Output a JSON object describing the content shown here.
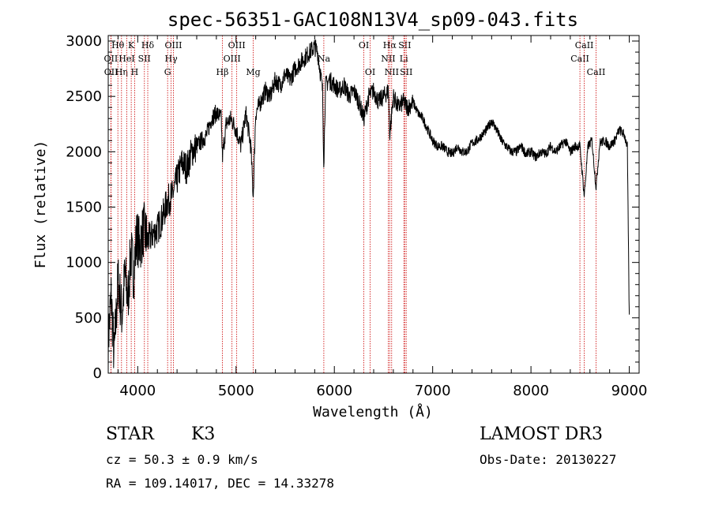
{
  "chart_data": {
    "type": "line",
    "title": "spec-56351-GAC108N13V4_sp09-043.fits",
    "xlabel": "Wavelength (Å)",
    "ylabel": "Flux (relative)",
    "xlim": [
      3700,
      9100
    ],
    "ylim": [
      0,
      3050
    ],
    "x_ticks": [
      4000,
      5000,
      6000,
      7000,
      8000,
      9000
    ],
    "y_ticks": [
      0,
      500,
      1000,
      1500,
      2000,
      2500,
      3000
    ],
    "grid": false,
    "series": [
      {
        "name": "flux",
        "x": [
          3700,
          3730,
          3760,
          3800,
          3840,
          3870,
          3900,
          3930,
          3960,
          3990,
          4020,
          4060,
          4100,
          4150,
          4200,
          4250,
          4300,
          4350,
          4400,
          4450,
          4500,
          4550,
          4600,
          4650,
          4700,
          4750,
          4800,
          4850,
          4861,
          4900,
          4950,
          5000,
          5050,
          5100,
          5150,
          5175,
          5200,
          5250,
          5300,
          5350,
          5400,
          5450,
          5500,
          5550,
          5600,
          5650,
          5700,
          5750,
          5800,
          5830,
          5860,
          5880,
          5893,
          5910,
          5950,
          6000,
          6050,
          6100,
          6150,
          6200,
          6250,
          6300,
          6350,
          6400,
          6450,
          6500,
          6550,
          6563,
          6600,
          6650,
          6700,
          6750,
          6800,
          6850,
          6900,
          6950,
          7000,
          7050,
          7100,
          7150,
          7200,
          7250,
          7300,
          7350,
          7400,
          7450,
          7500,
          7550,
          7600,
          7650,
          7700,
          7750,
          7800,
          7850,
          7900,
          7950,
          8000,
          8050,
          8100,
          8150,
          8200,
          8250,
          8300,
          8350,
          8400,
          8450,
          8498,
          8542,
          8580,
          8620,
          8662,
          8700,
          8750,
          8800,
          8850,
          8900,
          8950,
          8980,
          9000
        ],
        "y": [
          280,
          700,
          150,
          850,
          520,
          900,
          650,
          1100,
          900,
          1250,
          1150,
          1300,
          1200,
          1250,
          1300,
          1400,
          1550,
          1600,
          1750,
          1900,
          1850,
          2000,
          2050,
          2100,
          2150,
          2300,
          2350,
          2300,
          1950,
          2250,
          2300,
          2200,
          2050,
          2350,
          2050,
          1600,
          2350,
          2450,
          2550,
          2500,
          2650,
          2600,
          2700,
          2650,
          2750,
          2800,
          2850,
          2900,
          2950,
          2900,
          2700,
          2550,
          1900,
          2600,
          2650,
          2600,
          2550,
          2600,
          2500,
          2550,
          2450,
          2300,
          2500,
          2550,
          2450,
          2500,
          2550,
          2150,
          2500,
          2400,
          2450,
          2400,
          2450,
          2350,
          2300,
          2200,
          2100,
          2050,
          2050,
          2000,
          1980,
          2050,
          2000,
          2000,
          2080,
          2100,
          2150,
          2200,
          2280,
          2200,
          2100,
          2050,
          2000,
          2000,
          2050,
          1980,
          2000,
          1950,
          2000,
          1980,
          2050,
          2000,
          2050,
          2100,
          2000,
          2050,
          2050,
          1600,
          2050,
          2100,
          1680,
          2080,
          2100,
          2050,
          2100,
          2200,
          2150,
          2050,
          500
        ]
      }
    ],
    "line_marks": [
      {
        "wave": 3727,
        "top": "OII",
        "row": 1
      },
      {
        "wave": 3729,
        "top": "OII",
        "row": 2
      },
      {
        "wave": 3798,
        "top": "Hθ",
        "row": 0
      },
      {
        "wave": 3835,
        "top": "Hη",
        "row": 2
      },
      {
        "wave": 3889,
        "top": "HeI",
        "row": 1
      },
      {
        "wave": 3934,
        "top": "K",
        "row": 0
      },
      {
        "wave": 3969,
        "top": "H",
        "row": 2
      },
      {
        "wave": 4068,
        "top": "SII",
        "row": 1
      },
      {
        "wave": 4102,
        "top": "Hδ",
        "row": 0
      },
      {
        "wave": 4304,
        "top": "G",
        "row": 2
      },
      {
        "wave": 4340,
        "top": "Hγ",
        "row": 1
      },
      {
        "wave": 4363,
        "top": "OIII",
        "row": 0
      },
      {
        "wave": 4861,
        "top": "Hβ",
        "row": 2
      },
      {
        "wave": 4959,
        "top": "OIII",
        "row": 1
      },
      {
        "wave": 5007,
        "top": "OIII",
        "row": 0
      },
      {
        "wave": 5175,
        "top": "Mg",
        "row": 2
      },
      {
        "wave": 5893,
        "top": "Na",
        "row": 1
      },
      {
        "wave": 6300,
        "top": "OI",
        "row": 0
      },
      {
        "wave": 6364,
        "top": "OI",
        "row": 2
      },
      {
        "wave": 6548,
        "top": "NII",
        "row": 1
      },
      {
        "wave": 6563,
        "top": "Hα",
        "row": 0
      },
      {
        "wave": 6583,
        "top": "NII",
        "row": 2
      },
      {
        "wave": 6707,
        "top": "Li",
        "row": 1
      },
      {
        "wave": 6716,
        "top": "SII",
        "row": 0
      },
      {
        "wave": 6731,
        "top": "SII",
        "row": 2
      },
      {
        "wave": 8498,
        "top": "CaII",
        "row": 1
      },
      {
        "wave": 8542,
        "top": "CaII",
        "row": 0
      },
      {
        "wave": 8662,
        "top": "CaII",
        "row": 2
      }
    ]
  },
  "info": {
    "class": "STAR",
    "subclass": "K3",
    "cz": "cz = 50.3 ± 0.9 km/s",
    "radec": "RA = 109.14017, DEC =  14.33278",
    "survey": "LAMOST DR3",
    "obs_date": "Obs-Date: 20130227"
  },
  "colors": {
    "line_marker": "#cc0000",
    "spectrum": "#000000",
    "axis": "#000000"
  }
}
